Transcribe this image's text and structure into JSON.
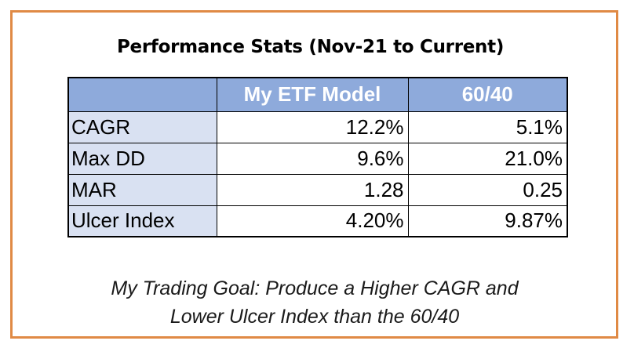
{
  "title": "Performance Stats (Nov-21 to Current)",
  "table": {
    "headers": [
      "",
      "My ETF Model",
      "60/40"
    ],
    "rows": [
      {
        "label": "CAGR",
        "model": "12.2%",
        "benchmark": "5.1%"
      },
      {
        "label": "Max DD",
        "model": "9.6%",
        "benchmark": "21.0%"
      },
      {
        "label": "MAR",
        "model": "1.28",
        "benchmark": "0.25"
      },
      {
        "label": "Ulcer Index",
        "model": "4.20%",
        "benchmark": "9.87%"
      }
    ]
  },
  "goal": {
    "line1": "My Trading Goal: Produce a Higher CAGR and",
    "line2": "Lower Ulcer Index than the 60/40"
  },
  "colors": {
    "border": "#e08a45",
    "header_fill": "#8eaadb",
    "label_fill": "#d9e1f2"
  }
}
